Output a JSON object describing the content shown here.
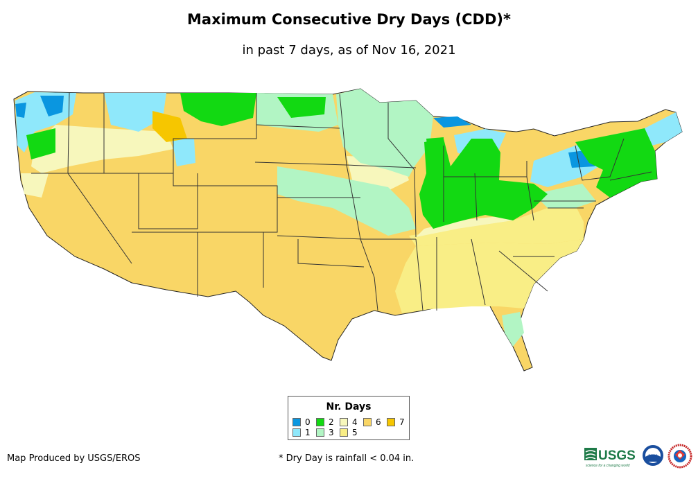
{
  "title": "Maximum Consecutive Dry Days (CDD)*",
  "subtitle": "in past 7 days, as of Nov 16, 2021",
  "legend": {
    "title": "Nr. Days",
    "items": [
      {
        "label": "0",
        "color": "#0a96e0"
      },
      {
        "label": "1",
        "color": "#8fe8fb"
      },
      {
        "label": "2",
        "color": "#12d912"
      },
      {
        "label": "3",
        "color": "#b2f5c4"
      },
      {
        "label": "4",
        "color": "#f7f7bc"
      },
      {
        "label": "5",
        "color": "#f9ee86"
      },
      {
        "label": "6",
        "color": "#f9d666"
      },
      {
        "label": "7",
        "color": "#f6c600"
      }
    ]
  },
  "credit": "Map Produced by USGS/EROS",
  "footnote": "* Dry Day is rainfall < 0.04 in.",
  "logos": {
    "usgs": "USGS",
    "usgs_tagline": "science for a changing world",
    "noaa": "noaa"
  }
}
